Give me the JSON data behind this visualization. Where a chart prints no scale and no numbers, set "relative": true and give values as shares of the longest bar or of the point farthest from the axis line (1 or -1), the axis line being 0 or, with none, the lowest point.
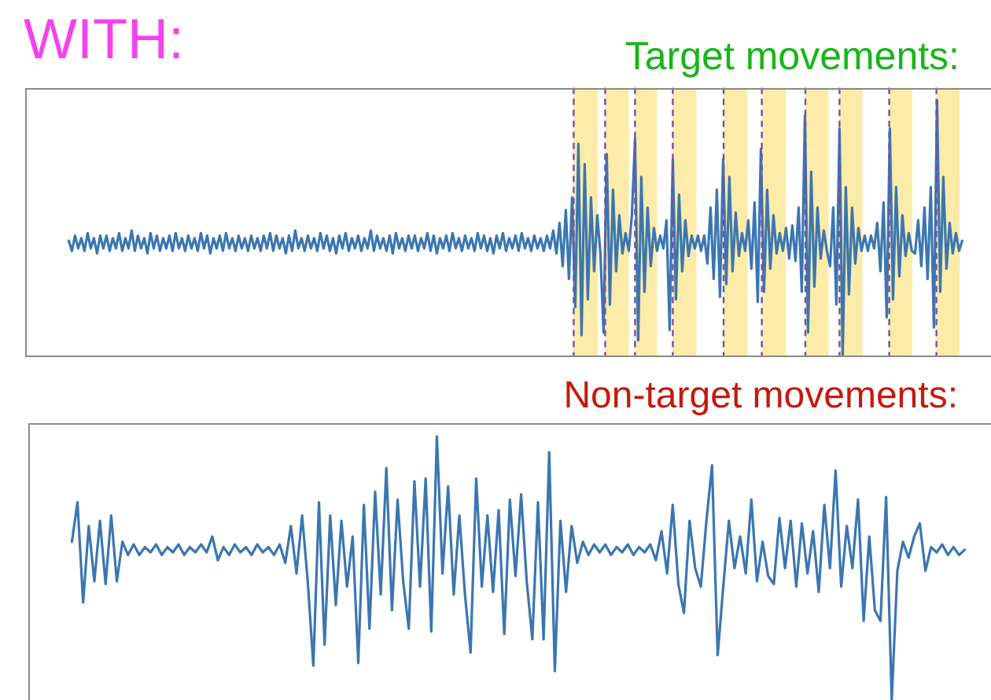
{
  "chart_data": [
    {
      "type": "line",
      "title": "WITH:",
      "subtitle": "Target movements:",
      "relative": true,
      "color": "#3b76b0",
      "categories": [
        null,
        null,
        null,
        null,
        null,
        null,
        null,
        null,
        null,
        null,
        null,
        null,
        null,
        null,
        null,
        null,
        null,
        null,
        null,
        null,
        null,
        null,
        null,
        null,
        null,
        null,
        null,
        null,
        null,
        null,
        null,
        null,
        null,
        null,
        null,
        null,
        null,
        null,
        null,
        null,
        null,
        null,
        null,
        null,
        null,
        null,
        null,
        null,
        null,
        null,
        null,
        null,
        null,
        null,
        null,
        null,
        null,
        null,
        null,
        null,
        null,
        null,
        null,
        null,
        null,
        null,
        null,
        null,
        null,
        null,
        null,
        null,
        null,
        null,
        null,
        null,
        null,
        null,
        null,
        null,
        null,
        null,
        null,
        null,
        null,
        null,
        null,
        null,
        null,
        null,
        null,
        null,
        null,
        null,
        null,
        null,
        null,
        null,
        null,
        null,
        null,
        null,
        null,
        null,
        null,
        null,
        null,
        null,
        null,
        null,
        null,
        null,
        null,
        null,
        null,
        null,
        null,
        null,
        null,
        null,
        null,
        null,
        null,
        null,
        null,
        null,
        null,
        null,
        null,
        null,
        null,
        null,
        null,
        null,
        null,
        null,
        null,
        null,
        null,
        null,
        null,
        null,
        null,
        null,
        null,
        null,
        null,
        null,
        null,
        null,
        null,
        null,
        null,
        null,
        null,
        null,
        null,
        null,
        null,
        null,
        null,
        null,
        null,
        null,
        null,
        null,
        null,
        null,
        null,
        null,
        null,
        null,
        null,
        null,
        null,
        null,
        null,
        null,
        null,
        null,
        null,
        null,
        null,
        null,
        null,
        null,
        null,
        null,
        null,
        null,
        null,
        null,
        null,
        null,
        null,
        null,
        null,
        null,
        null,
        null,
        null,
        null,
        null,
        null,
        null,
        null,
        null,
        null,
        null,
        null,
        null,
        null,
        null,
        null,
        null,
        null,
        null,
        null,
        null,
        null,
        null,
        null,
        null,
        null,
        null,
        null,
        null,
        null,
        null,
        null,
        null,
        null,
        null,
        null,
        null,
        null,
        null,
        null,
        null,
        null,
        null,
        null,
        null,
        null,
        null,
        null,
        null,
        null,
        null,
        null,
        null,
        null,
        null,
        null,
        null,
        null,
        null,
        null,
        null,
        null,
        null,
        null,
        null,
        null,
        null,
        null,
        null,
        null,
        null,
        null,
        null,
        null,
        null,
        null,
        null,
        null,
        null,
        null,
        null,
        null,
        null,
        null,
        null,
        null,
        null
      ],
      "values": [
        0.45,
        0.41,
        0.47,
        0.42,
        0.46,
        0.41,
        0.48,
        0.42,
        0.46,
        0.4,
        0.47,
        0.42,
        0.47,
        0.41,
        0.46,
        0.42,
        0.48,
        0.41,
        0.46,
        0.42,
        0.49,
        0.41,
        0.47,
        0.42,
        0.46,
        0.4,
        0.48,
        0.42,
        0.47,
        0.41,
        0.46,
        0.42,
        0.47,
        0.41,
        0.48,
        0.42,
        0.46,
        0.41,
        0.47,
        0.42,
        0.46,
        0.41,
        0.48,
        0.42,
        0.47,
        0.4,
        0.46,
        0.42,
        0.47,
        0.41,
        0.48,
        0.42,
        0.46,
        0.41,
        0.47,
        0.42,
        0.46,
        0.41,
        0.47,
        0.42,
        0.46,
        0.41,
        0.47,
        0.42,
        0.48,
        0.41,
        0.47,
        0.42,
        0.46,
        0.4,
        0.47,
        0.41,
        0.49,
        0.42,
        0.46,
        0.41,
        0.47,
        0.42,
        0.46,
        0.41,
        0.48,
        0.42,
        0.47,
        0.41,
        0.46,
        0.4,
        0.47,
        0.42,
        0.48,
        0.41,
        0.46,
        0.42,
        0.47,
        0.41,
        0.46,
        0.42,
        0.49,
        0.41,
        0.47,
        0.42,
        0.46,
        0.41,
        0.47,
        0.4,
        0.48,
        0.42,
        0.46,
        0.41,
        0.47,
        0.42,
        0.47,
        0.41,
        0.46,
        0.42,
        0.48,
        0.41,
        0.47,
        0.4,
        0.46,
        0.42,
        0.47,
        0.41,
        0.48,
        0.42,
        0.46,
        0.41,
        0.47,
        0.42,
        0.46,
        0.41,
        0.48,
        0.42,
        0.47,
        0.41,
        0.46,
        0.4,
        0.47,
        0.42,
        0.48,
        0.41,
        0.46,
        0.42,
        0.47,
        0.41,
        0.48,
        0.42,
        0.46,
        0.41,
        0.47,
        0.42,
        0.46,
        0.41,
        0.47,
        0.42,
        0.49,
        0.4,
        0.52,
        0.35,
        0.57,
        0.3,
        0.62,
        0.19,
        0.83,
        0.08,
        0.75,
        0.22,
        0.62,
        0.33,
        0.55,
        0.4,
        0.09,
        0.79,
        0.2,
        0.65,
        0.33,
        0.55,
        0.4,
        0.48,
        0.41,
        0.55,
        0.85,
        0.06,
        0.7,
        0.25,
        0.58,
        0.35,
        0.5,
        0.41,
        0.47,
        0.42,
        0.53,
        0.1,
        0.77,
        0.22,
        0.63,
        0.33,
        0.53,
        0.39,
        0.47,
        0.42,
        0.47,
        0.41,
        0.47,
        0.36,
        0.58,
        0.3,
        0.65,
        0.23,
        0.77,
        0.28,
        0.7,
        0.33,
        0.56,
        0.39,
        0.48,
        0.41,
        0.53,
        0.34,
        0.6,
        0.21,
        0.81,
        0.25,
        0.65,
        0.34,
        0.55,
        0.4,
        0.48,
        0.41,
        0.5,
        0.38,
        0.51,
        0.37,
        0.58,
        0.25,
        0.94,
        0.09,
        0.72,
        0.27,
        0.58,
        0.38,
        0.49,
        0.41,
        0.35,
        0.58,
        0.2,
        0.89,
        0.0,
        0.66,
        0.24,
        0.58,
        0.36,
        0.5,
        0.41,
        0.47,
        0.41,
        0.47,
        0.42,
        0.52,
        0.33,
        0.6,
        0.15,
        0.89,
        0.22,
        0.66,
        0.31,
        0.55,
        0.39,
        0.48,
        0.41,
        0.4,
        0.53,
        0.35,
        0.58,
        0.3,
        0.66,
        0.11,
        1.0,
        0.25,
        0.7,
        0.34,
        0.52,
        0.4,
        0.48,
        0.41,
        0.45
      ]
    },
    {
      "type": "line",
      "title": "Non-target movements:",
      "relative": true,
      "color": "#3b76b0",
      "categories": [
        null,
        null,
        null,
        null,
        null,
        null,
        null,
        null,
        null,
        null,
        null,
        null,
        null,
        null,
        null,
        null,
        null,
        null,
        null,
        null,
        null,
        null,
        null,
        null,
        null,
        null,
        null,
        null,
        null,
        null,
        null,
        null,
        null,
        null,
        null,
        null,
        null,
        null,
        null,
        null,
        null,
        null,
        null,
        null,
        null,
        null,
        null,
        null,
        null,
        null,
        null,
        null,
        null,
        null,
        null,
        null,
        null,
        null,
        null,
        null,
        null,
        null,
        null,
        null,
        null,
        null,
        null,
        null,
        null,
        null,
        null,
        null,
        null,
        null,
        null,
        null,
        null,
        null,
        null,
        null,
        null,
        null,
        null,
        null,
        null,
        null,
        null,
        null,
        null,
        null,
        null,
        null,
        null,
        null,
        null,
        null,
        null,
        null,
        null,
        null,
        null,
        null,
        null,
        null,
        null,
        null,
        null,
        null,
        null,
        null,
        null,
        null,
        null,
        null,
        null,
        null,
        null,
        null,
        null,
        null,
        null,
        null,
        null,
        null,
        null,
        null,
        null,
        null,
        null,
        null,
        null,
        null,
        null,
        null,
        null,
        null,
        null,
        null,
        null,
        null,
        null,
        null,
        null,
        null,
        null,
        null,
        null,
        null,
        null,
        null,
        null,
        null,
        null,
        null,
        null,
        null,
        null,
        null,
        null,
        null
      ],
      "values": [
        0.6,
        0.75,
        0.37,
        0.66,
        0.45,
        0.68,
        0.44,
        0.7,
        0.45,
        0.6,
        0.55,
        0.59,
        0.55,
        0.58,
        0.56,
        0.59,
        0.55,
        0.58,
        0.56,
        0.59,
        0.55,
        0.58,
        0.56,
        0.59,
        0.56,
        0.62,
        0.53,
        0.58,
        0.55,
        0.59,
        0.56,
        0.58,
        0.55,
        0.59,
        0.56,
        0.58,
        0.55,
        0.59,
        0.52,
        0.66,
        0.48,
        0.7,
        0.45,
        0.13,
        0.75,
        0.21,
        0.7,
        0.36,
        0.68,
        0.43,
        0.62,
        0.14,
        0.74,
        0.27,
        0.79,
        0.4,
        0.88,
        0.34,
        0.76,
        0.45,
        0.27,
        0.83,
        0.43,
        0.84,
        0.26,
        1.0,
        0.48,
        0.81,
        0.4,
        0.7,
        0.4,
        0.18,
        0.84,
        0.43,
        0.7,
        0.41,
        0.72,
        0.25,
        0.76,
        0.47,
        0.78,
        0.45,
        0.23,
        0.75,
        0.23,
        0.94,
        0.11,
        0.68,
        0.41,
        0.66,
        0.52,
        0.6,
        0.55,
        0.59,
        0.56,
        0.59,
        0.55,
        0.58,
        0.56,
        0.59,
        0.55,
        0.58,
        0.56,
        0.59,
        0.53,
        0.64,
        0.48,
        0.74,
        0.44,
        0.33,
        0.68,
        0.5,
        0.43,
        0.68,
        0.89,
        0.17,
        0.43,
        0.68,
        0.5,
        0.62,
        0.48,
        0.76,
        0.45,
        0.6,
        0.47,
        0.44,
        0.69,
        0.5,
        0.68,
        0.43,
        0.67,
        0.48,
        0.64,
        0.41,
        0.74,
        0.5,
        0.87,
        0.43,
        0.66,
        0.5,
        0.76,
        0.3,
        0.62,
        0.34,
        0.3,
        0.77,
        0.0,
        0.49,
        0.6,
        0.54,
        0.62,
        0.67,
        0.49,
        0.58,
        0.56,
        0.59,
        0.55,
        0.58,
        0.55,
        0.57
      ]
    }
  ]
}
